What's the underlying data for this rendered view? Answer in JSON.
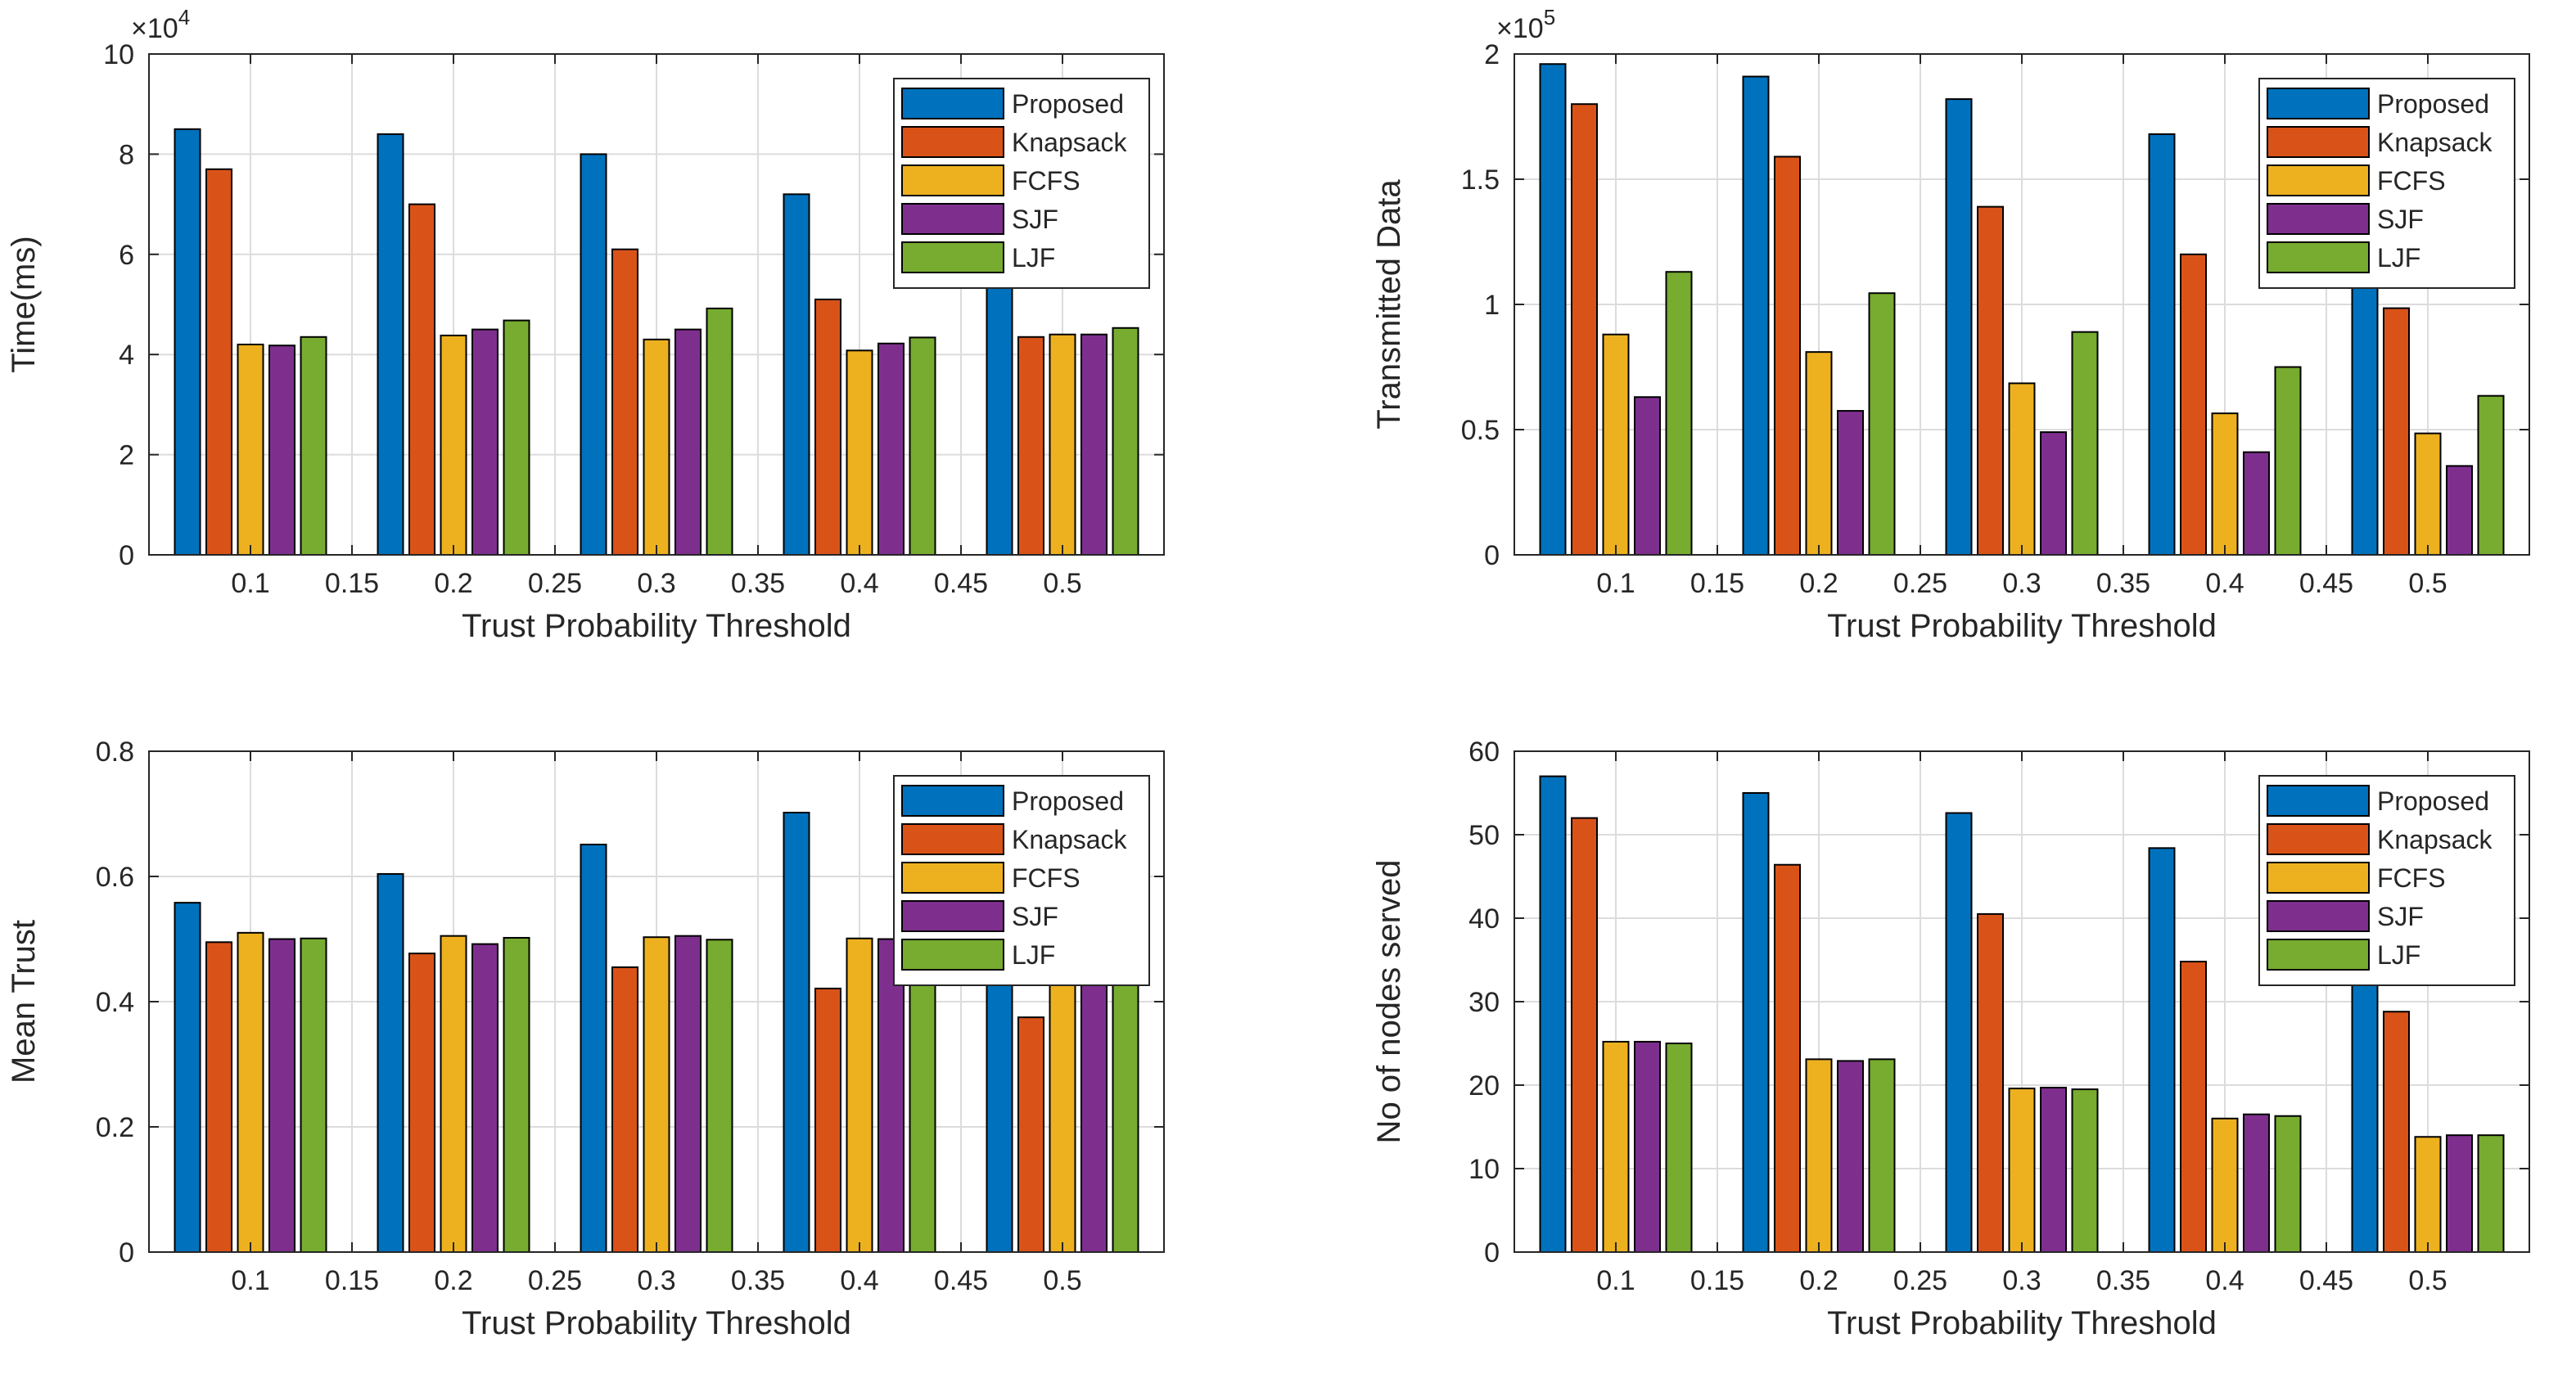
{
  "colors": {
    "Proposed": "#0072BD",
    "Knapsack": "#D95319",
    "FCFS": "#EDB120",
    "SJF": "#7E2F8E",
    "LJF": "#77AC30"
  },
  "chart_data": [
    {
      "type": "bar",
      "title": "",
      "xlabel": "Trust Probability Threshold",
      "ylabel": "Time(ms)",
      "exponent_label": "×10",
      "exponent_power": "4",
      "categories": [
        0.1,
        0.2,
        0.3,
        0.4,
        0.5
      ],
      "xlim": [
        0.05,
        0.55
      ],
      "xticks": [
        0.1,
        0.15,
        0.2,
        0.25,
        0.3,
        0.35,
        0.4,
        0.45,
        0.5
      ],
      "xtick_labels": [
        "0.1",
        "0.15",
        "0.2",
        "0.25",
        "0.3",
        "0.35",
        "0.4",
        "0.45",
        "0.5"
      ],
      "ylim": [
        0,
        100000
      ],
      "yticks": [
        0,
        20000,
        40000,
        60000,
        80000,
        100000
      ],
      "ytick_labels": [
        "0",
        "2",
        "4",
        "6",
        "8",
        "10"
      ],
      "grid": true,
      "legend": "top-right",
      "series": [
        {
          "name": "Proposed",
          "values": [
            85000,
            84000,
            80000,
            72000,
            62000
          ]
        },
        {
          "name": "Knapsack",
          "values": [
            77000,
            70000,
            61000,
            51000,
            43500
          ]
        },
        {
          "name": "FCFS",
          "values": [
            42000,
            43800,
            43000,
            40800,
            44000
          ]
        },
        {
          "name": "SJF",
          "values": [
            41800,
            45000,
            45000,
            42200,
            44000
          ]
        },
        {
          "name": "LJF",
          "values": [
            43500,
            46800,
            49200,
            43400,
            45300
          ]
        }
      ]
    },
    {
      "type": "bar",
      "title": "",
      "xlabel": "Trust Probability Threshold",
      "ylabel": "Transmitted Data",
      "exponent_label": "×10",
      "exponent_power": "5",
      "categories": [
        0.1,
        0.2,
        0.3,
        0.4,
        0.5
      ],
      "xlim": [
        0.05,
        0.55
      ],
      "xticks": [
        0.1,
        0.15,
        0.2,
        0.25,
        0.3,
        0.35,
        0.4,
        0.45,
        0.5
      ],
      "xtick_labels": [
        "0.1",
        "0.15",
        "0.2",
        "0.25",
        "0.3",
        "0.35",
        "0.4",
        "0.45",
        "0.5"
      ],
      "ylim": [
        0,
        200000
      ],
      "yticks": [
        0,
        50000,
        100000,
        150000,
        200000
      ],
      "ytick_labels": [
        "0",
        "0.5",
        "1",
        "1.5",
        "2"
      ],
      "grid": true,
      "legend": "top-right",
      "series": [
        {
          "name": "Proposed",
          "values": [
            196000,
            191000,
            182000,
            168000,
            152000
          ]
        },
        {
          "name": "Knapsack",
          "values": [
            180000,
            159000,
            139000,
            120000,
            98500
          ]
        },
        {
          "name": "FCFS",
          "values": [
            88000,
            81000,
            68500,
            56500,
            48500
          ]
        },
        {
          "name": "SJF",
          "values": [
            63000,
            57500,
            49000,
            41000,
            35500
          ]
        },
        {
          "name": "LJF",
          "values": [
            113000,
            104500,
            89000,
            75000,
            63500
          ]
        }
      ]
    },
    {
      "type": "bar",
      "title": "",
      "xlabel": "Trust Probability Threshold",
      "ylabel": "Mean Trust",
      "categories": [
        0.1,
        0.2,
        0.3,
        0.4,
        0.5
      ],
      "xlim": [
        0.05,
        0.55
      ],
      "xticks": [
        0.1,
        0.15,
        0.2,
        0.25,
        0.3,
        0.35,
        0.4,
        0.45,
        0.5
      ],
      "xtick_labels": [
        "0.1",
        "0.15",
        "0.2",
        "0.25",
        "0.3",
        "0.35",
        "0.4",
        "0.45",
        "0.5"
      ],
      "ylim": [
        0,
        0.8
      ],
      "yticks": [
        0,
        0.2,
        0.4,
        0.6,
        0.8
      ],
      "ytick_labels": [
        "0",
        "0.2",
        "0.4",
        "0.6",
        "0.8"
      ],
      "grid": true,
      "legend": "top-right",
      "series": [
        {
          "name": "Proposed",
          "values": [
            0.558,
            0.604,
            0.651,
            0.702,
            0.745
          ]
        },
        {
          "name": "Knapsack",
          "values": [
            0.495,
            0.477,
            0.455,
            0.421,
            0.375
          ]
        },
        {
          "name": "FCFS",
          "values": [
            0.51,
            0.505,
            0.503,
            0.501,
            0.499
          ]
        },
        {
          "name": "SJF",
          "values": [
            0.5,
            0.492,
            0.505,
            0.5,
            0.501
          ]
        },
        {
          "name": "LJF",
          "values": [
            0.501,
            0.502,
            0.499,
            0.5,
            0.502
          ]
        }
      ]
    },
    {
      "type": "bar",
      "title": "",
      "xlabel": "Trust Probability Threshold",
      "ylabel": "No of nodes served",
      "categories": [
        0.1,
        0.2,
        0.3,
        0.4,
        0.5
      ],
      "xlim": [
        0.05,
        0.55
      ],
      "xticks": [
        0.1,
        0.15,
        0.2,
        0.25,
        0.3,
        0.35,
        0.4,
        0.45,
        0.5
      ],
      "xtick_labels": [
        "0.1",
        "0.15",
        "0.2",
        "0.25",
        "0.3",
        "0.35",
        "0.4",
        "0.45",
        "0.5"
      ],
      "ylim": [
        0,
        60
      ],
      "yticks": [
        0,
        10,
        20,
        30,
        40,
        50,
        60
      ],
      "ytick_labels": [
        "0",
        "10",
        "20",
        "30",
        "40",
        "50",
        "60"
      ],
      "grid": true,
      "legend": "top-right",
      "series": [
        {
          "name": "Proposed",
          "values": [
            57,
            55,
            52.6,
            48.4,
            43
          ]
        },
        {
          "name": "Knapsack",
          "values": [
            52,
            46.4,
            40.5,
            34.8,
            28.8
          ]
        },
        {
          "name": "FCFS",
          "values": [
            25.2,
            23.1,
            19.6,
            16,
            13.8
          ]
        },
        {
          "name": "SJF",
          "values": [
            25.2,
            22.9,
            19.7,
            16.5,
            14
          ]
        },
        {
          "name": "LJF",
          "values": [
            25,
            23.1,
            19.5,
            16.3,
            14
          ]
        }
      ]
    }
  ]
}
